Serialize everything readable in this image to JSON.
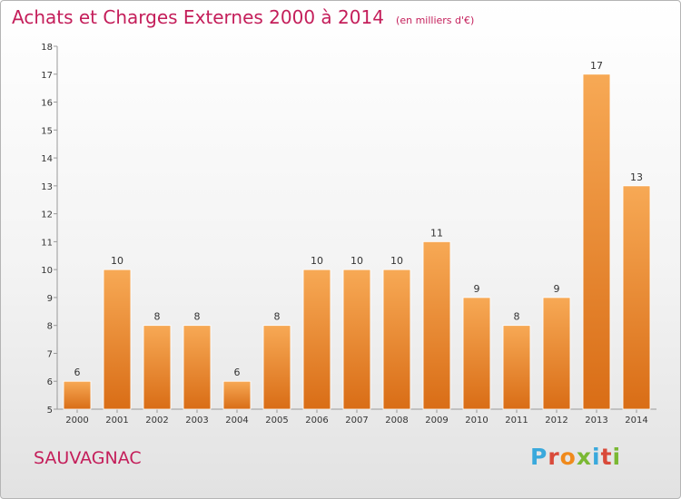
{
  "chart_data": {
    "type": "bar",
    "title": "Achats et Charges Externes 2000 à 2014",
    "subtitle": "(en milliers d'€)",
    "categories": [
      "2000",
      "2001",
      "2002",
      "2003",
      "2004",
      "2005",
      "2006",
      "2007",
      "2008",
      "2009",
      "2010",
      "2011",
      "2012",
      "2013",
      "2014"
    ],
    "values": [
      6,
      10,
      8,
      8,
      6,
      8,
      10,
      10,
      10,
      11,
      9,
      8,
      9,
      17,
      13
    ],
    "ylim": [
      5,
      18
    ],
    "yticks": [
      5,
      6,
      7,
      8,
      9,
      10,
      11,
      12,
      13,
      14,
      15,
      16,
      17,
      18
    ],
    "grid": false,
    "bar_color": "#f0922e",
    "label": "SAUVAGNAC"
  },
  "colors": {
    "title": "#c41e5a",
    "logo": [
      "#3aa9dc",
      "#d94a3a",
      "#f08a1c",
      "#7ab833",
      "#3aa9dc",
      "#d94a3a",
      "#7ab833"
    ]
  },
  "logo_letters": [
    "P",
    "r",
    "o",
    "x",
    "i",
    "t",
    "i"
  ]
}
